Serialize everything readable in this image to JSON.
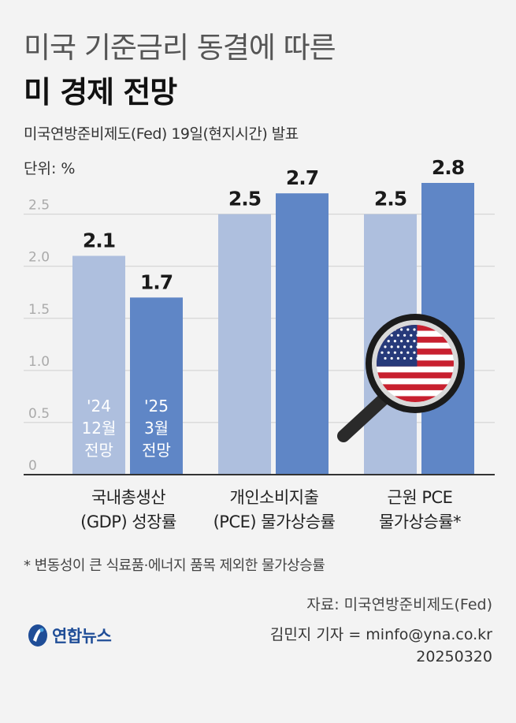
{
  "header": {
    "title_line1": "미국 기준금리 동결에 따른",
    "title_line2": "미 경제 전망",
    "subtitle": "미국연방준비제도(Fed) 19일(현지시간) 발표",
    "unit": "단위: %"
  },
  "chart_data": {
    "type": "bar",
    "categories": [
      "국내총생산 (GDP) 성장률",
      "개인소비지출 (PCE) 물가상승률",
      "근원 PCE 물가상승률*"
    ],
    "category_lines": [
      [
        "국내총생산",
        "(GDP) 성장률"
      ],
      [
        "개인소비지출",
        "(PCE) 물가상승률"
      ],
      [
        "근원 PCE",
        "물가상승률*"
      ]
    ],
    "series": [
      {
        "name": "'24 12월 전망",
        "name_lines": [
          "'24",
          "12월",
          "전망"
        ],
        "values": [
          2.1,
          2.5,
          2.5
        ],
        "color": "#aebfde"
      },
      {
        "name": "'25 3월 전망",
        "name_lines": [
          "'25",
          "3월",
          "전망"
        ],
        "values": [
          1.7,
          2.7,
          2.8
        ],
        "color": "#5f86c6"
      }
    ],
    "ylim": [
      0,
      2.8
    ],
    "yticks": [
      "0",
      "0.5",
      "1.0",
      "1.5",
      "2.0",
      "2.5"
    ],
    "grid": true,
    "legend_placement": "inside first bars"
  },
  "colors": {
    "gridline": "#cfcfcf",
    "axis": "#333333",
    "tick": "#aaaaaa",
    "brand": "#1f4d97"
  },
  "decoration": {
    "icon": "magnifier-us-flag-icon"
  },
  "footer": {
    "note": "* 변동성이 큰 식료품·에너지 품목 제외한 물가상승률",
    "source": "자료: 미국연방준비제도(Fed)",
    "byline": "김민지 기자 = minfo@yna.co.kr",
    "date": "20250320",
    "logo_text": "연합뉴스"
  }
}
